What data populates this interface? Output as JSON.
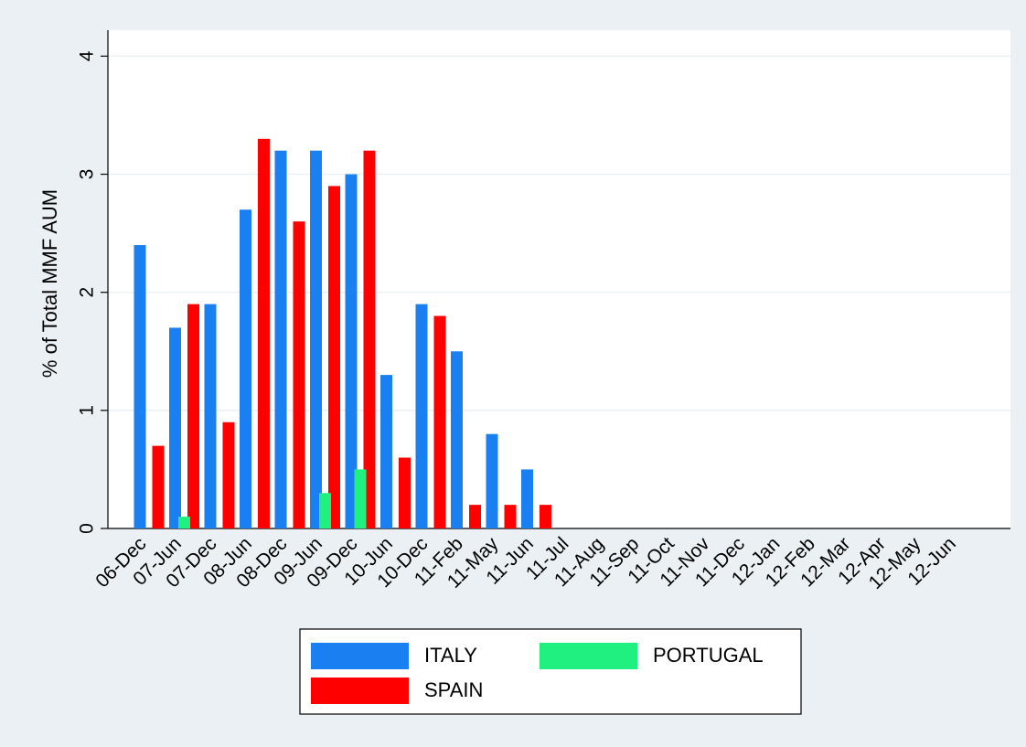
{
  "chart_data": {
    "type": "bar",
    "y_label": "% of Total MMF AUM",
    "categories": [
      "06-Dec",
      "07-Jun",
      "07-Dec",
      "08-Jun",
      "08-Dec",
      "09-Jun",
      "09-Dec",
      "10-Jun",
      "10-Dec",
      "11-Feb",
      "11-May",
      "11-Jun",
      "11-Jul",
      "11-Aug",
      "11-Sep",
      "11-Oct",
      "11-Nov",
      "11-Dec",
      "12-Jan",
      "12-Feb",
      "12-Mar",
      "12-Apr",
      "12-May",
      "12-Jun"
    ],
    "series": [
      {
        "name": "ITALY",
        "color": "#1a7ff0",
        "values": [
          2.4,
          1.7,
          1.9,
          2.7,
          3.2,
          3.2,
          3.0,
          1.3,
          1.9,
          1.5,
          0.8,
          0.5,
          null,
          null,
          null,
          null,
          null,
          null,
          null,
          null,
          null,
          null,
          null,
          null
        ]
      },
      {
        "name": "PORTUGAL",
        "color": "#1ff07f",
        "values": [
          null,
          0.1,
          null,
          null,
          null,
          0.3,
          0.5,
          null,
          null,
          null,
          null,
          null,
          null,
          null,
          null,
          null,
          null,
          null,
          null,
          null,
          null,
          null,
          null,
          null
        ]
      },
      {
        "name": "SPAIN",
        "color": "#ff0000",
        "values": [
          0.7,
          1.9,
          0.9,
          3.3,
          2.6,
          2.9,
          3.2,
          0.6,
          1.8,
          0.2,
          0.2,
          0.2,
          null,
          null,
          null,
          null,
          null,
          null,
          null,
          null,
          null,
          null,
          null,
          null
        ]
      }
    ],
    "ylim": [
      0,
      4.22
    ],
    "yticks": [
      0,
      1,
      2,
      3,
      4
    ],
    "grid": true
  }
}
